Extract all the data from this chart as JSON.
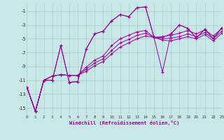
{
  "xlabel": "Windchill (Refroidissement éolien,°C)",
  "bg_color": "#c8e8e8",
  "grid_color": "#aacccc",
  "line_color": "#990099",
  "xmin": 0,
  "xmax": 23,
  "ymin": -16,
  "ymax": 0,
  "yticks": [
    -15,
    -13,
    -11,
    -9,
    -7,
    -5,
    -3,
    -1
  ],
  "xticks": [
    0,
    1,
    2,
    3,
    4,
    5,
    6,
    7,
    8,
    9,
    10,
    11,
    12,
    13,
    14,
    15,
    16,
    17,
    18,
    19,
    20,
    21,
    22,
    23
  ],
  "series": [
    {
      "x": [
        0,
        1,
        2,
        3,
        4,
        5,
        6,
        7,
        8,
        9,
        10,
        11,
        12,
        13,
        14,
        15,
        16,
        17,
        18,
        19,
        20,
        21,
        22,
        23
      ],
      "y": [
        -12,
        -15.5,
        -11,
        -11,
        -6.0,
        -11.3,
        -11.2,
        -6.5,
        -4.3,
        -3.9,
        -2.4,
        -1.5,
        -1.8,
        -0.5,
        -0.4,
        -4.8,
        -9.8,
        -4.3,
        -3.0,
        -3.5,
        -4.9,
        -3.6,
        -5.0,
        -3.4
      ]
    },
    {
      "x": [
        0,
        1,
        2,
        3,
        4,
        5,
        6,
        7,
        8,
        9,
        10,
        11,
        12,
        13,
        14,
        15,
        16,
        17,
        18,
        19,
        20,
        21,
        22,
        23
      ],
      "y": [
        -12,
        -15.5,
        -11,
        -11,
        -6.0,
        -11.3,
        -11.2,
        -6.5,
        -4.3,
        -3.9,
        -2.4,
        -1.5,
        -1.8,
        -0.5,
        -0.4,
        -4.8,
        -4.8,
        -4.3,
        -3.0,
        -3.5,
        -4.9,
        -3.6,
        -5.0,
        -3.4
      ]
    },
    {
      "x": [
        0,
        1,
        2,
        3,
        4,
        5,
        6,
        7,
        8,
        9,
        10,
        11,
        12,
        13,
        14,
        15,
        16,
        17,
        18,
        19,
        20,
        21,
        22,
        23
      ],
      "y": [
        -12,
        -15.5,
        -11,
        -10.4,
        -10.2,
        -10.3,
        -10.3,
        -9.1,
        -8.1,
        -7.5,
        -6.0,
        -5.0,
        -4.5,
        -4.0,
        -3.8,
        -4.8,
        -4.7,
        -4.5,
        -4.2,
        -3.8,
        -4.3,
        -3.7,
        -4.6,
        -3.5
      ]
    },
    {
      "x": [
        0,
        1,
        2,
        3,
        4,
        5,
        6,
        7,
        8,
        9,
        10,
        11,
        12,
        13,
        14,
        15,
        16,
        17,
        18,
        19,
        20,
        21,
        22,
        23
      ],
      "y": [
        -12,
        -15.5,
        -11,
        -10.4,
        -10.2,
        -10.3,
        -10.3,
        -9.4,
        -8.5,
        -7.9,
        -6.7,
        -5.6,
        -5.1,
        -4.5,
        -4.2,
        -4.8,
        -5.0,
        -4.9,
        -4.7,
        -4.3,
        -4.7,
        -4.1,
        -5.0,
        -3.9
      ]
    },
    {
      "x": [
        0,
        1,
        2,
        3,
        4,
        5,
        6,
        7,
        8,
        9,
        10,
        11,
        12,
        13,
        14,
        15,
        16,
        17,
        18,
        19,
        20,
        21,
        22,
        23
      ],
      "y": [
        -12,
        -15.5,
        -11,
        -10.4,
        -10.2,
        -10.3,
        -10.3,
        -9.7,
        -8.9,
        -8.3,
        -7.2,
        -6.2,
        -5.6,
        -5.0,
        -4.6,
        -4.8,
        -5.2,
        -5.3,
        -5.0,
        -4.7,
        -5.0,
        -4.4,
        -5.3,
        -4.2
      ]
    }
  ]
}
